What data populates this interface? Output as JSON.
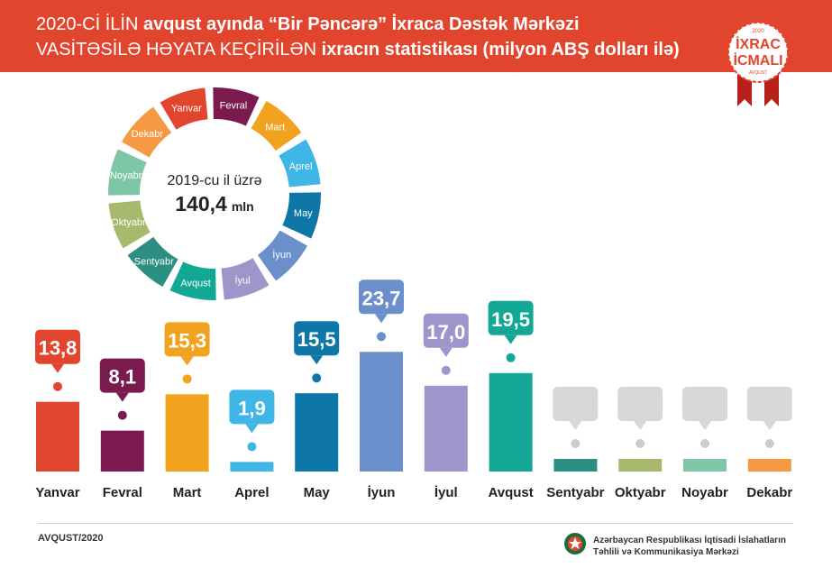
{
  "header": {
    "title_line1": {
      "a": "2020-Cİ İLİN ",
      "b": "avqust ayında “Bir Pəncərə” İxraca Dəstək Mərkəzi"
    },
    "title_line2": {
      "a": "VASİTƏSİLƏ HƏYATA KEÇİRİLƏN ",
      "b": "ixracın statistikası (milyon ABŞ dolları ilə)"
    }
  },
  "badge": {
    "year": "2020",
    "line1": "İXRAC",
    "line2": "İCMALI",
    "sub": "AVQUST"
  },
  "ring": {
    "center_label": "2019-cu il üzrə",
    "center_value": "140,4",
    "center_unit": "mln",
    "months": [
      {
        "name": "Yanvar",
        "color": "#e2452d"
      },
      {
        "name": "Fevral",
        "color": "#7a1a4e"
      },
      {
        "name": "Mart",
        "color": "#f1a31f"
      },
      {
        "name": "Aprel",
        "color": "#3fb6e6"
      },
      {
        "name": "May",
        "color": "#0e77a8"
      },
      {
        "name": "İyun",
        "color": "#6a8fcb"
      },
      {
        "name": "İyul",
        "color": "#9f95cb"
      },
      {
        "name": "Avqust",
        "color": "#13a896"
      },
      {
        "name": "Sentyabr",
        "color": "#2c8f82"
      },
      {
        "name": "Oktyabr",
        "color": "#a8b86c"
      },
      {
        "name": "Noyabr",
        "color": "#7fc6a6"
      },
      {
        "name": "Dekabr",
        "color": "#f59a43"
      }
    ]
  },
  "chart_data": {
    "type": "bar",
    "title": "2020-Cİ İLİN avqust ayında “Bir Pəncərə” İxraca Dəstək Mərkəzi VASİTƏSİLƏ HƏYATA KEÇİRİLƏN ixracın statistikası (milyon ABŞ dolları ilə)",
    "categories": [
      "Yanvar",
      "Fevral",
      "Mart",
      "Aprel",
      "May",
      "İyun",
      "İyul",
      "Avqust",
      "Sentyabr",
      "Oktyabr",
      "Noyabr",
      "Dekabr"
    ],
    "values": [
      13.8,
      8.1,
      15.3,
      1.9,
      15.5,
      23.7,
      17.0,
      19.5,
      null,
      null,
      null,
      null
    ],
    "value_labels": [
      "13,8",
      "8,1",
      "15,3",
      "1,9",
      "15,5",
      "23,7",
      "17,0",
      "19,5",
      "",
      "",
      "",
      ""
    ],
    "colors": [
      "#e2452d",
      "#7a1a4e",
      "#f1a31f",
      "#3fb6e6",
      "#0e77a8",
      "#6a8fcb",
      "#9f95cb",
      "#13a896",
      "#2c8f82",
      "#a8b86c",
      "#7fc6a6",
      "#f59a43"
    ],
    "xlabel": "",
    "ylabel": "",
    "ylim": [
      0,
      25
    ],
    "grid": false,
    "legend": "none"
  },
  "footer": {
    "date": "AVQUST/2020",
    "org_line1": "Azərbaycan Respublikası İqtisadi İslahatların",
    "org_line2": "Təhlili və Kommunikasiya Mərkəzi"
  }
}
